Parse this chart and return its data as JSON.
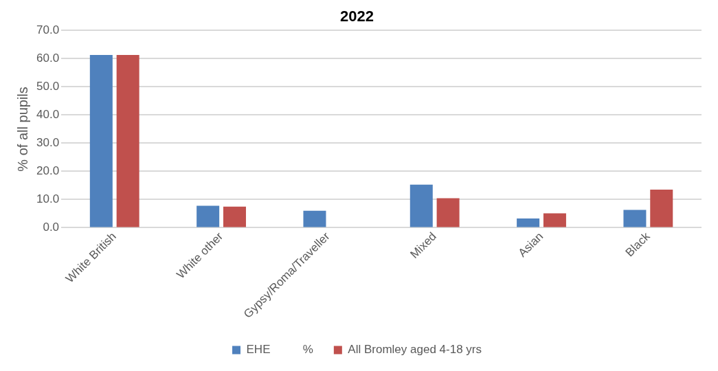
{
  "chart_data": {
    "type": "bar",
    "title": "2022",
    "ylabel": "% of all pupils",
    "categories": [
      "White British",
      "White other",
      "Gypsy/Roma/Traveller",
      "Mixed",
      "Asian",
      "Black"
    ],
    "series": [
      {
        "name": "EHE          %",
        "color": "#4f81bd",
        "values": [
          61.3,
          7.8,
          6.0,
          15.3,
          3.3,
          6.3
        ]
      },
      {
        "name": "All Bromley aged 4-18 yrs",
        "color": "#c0504d",
        "values": [
          61.3,
          7.5,
          null,
          10.5,
          5.1,
          13.5
        ]
      }
    ],
    "ylim": [
      0,
      70
    ],
    "yticks": [
      {
        "value": 0,
        "label": "0.0"
      },
      {
        "value": 10,
        "label": "10.0"
      },
      {
        "value": 20,
        "label": "20.0"
      },
      {
        "value": 30,
        "label": "30.0"
      },
      {
        "value": 40,
        "label": "40.0"
      },
      {
        "value": 50,
        "label": "50.0"
      },
      {
        "value": 60,
        "label": "60.0"
      },
      {
        "value": 70,
        "label": "70.0"
      }
    ],
    "grid": "y",
    "legend": "bottom"
  }
}
